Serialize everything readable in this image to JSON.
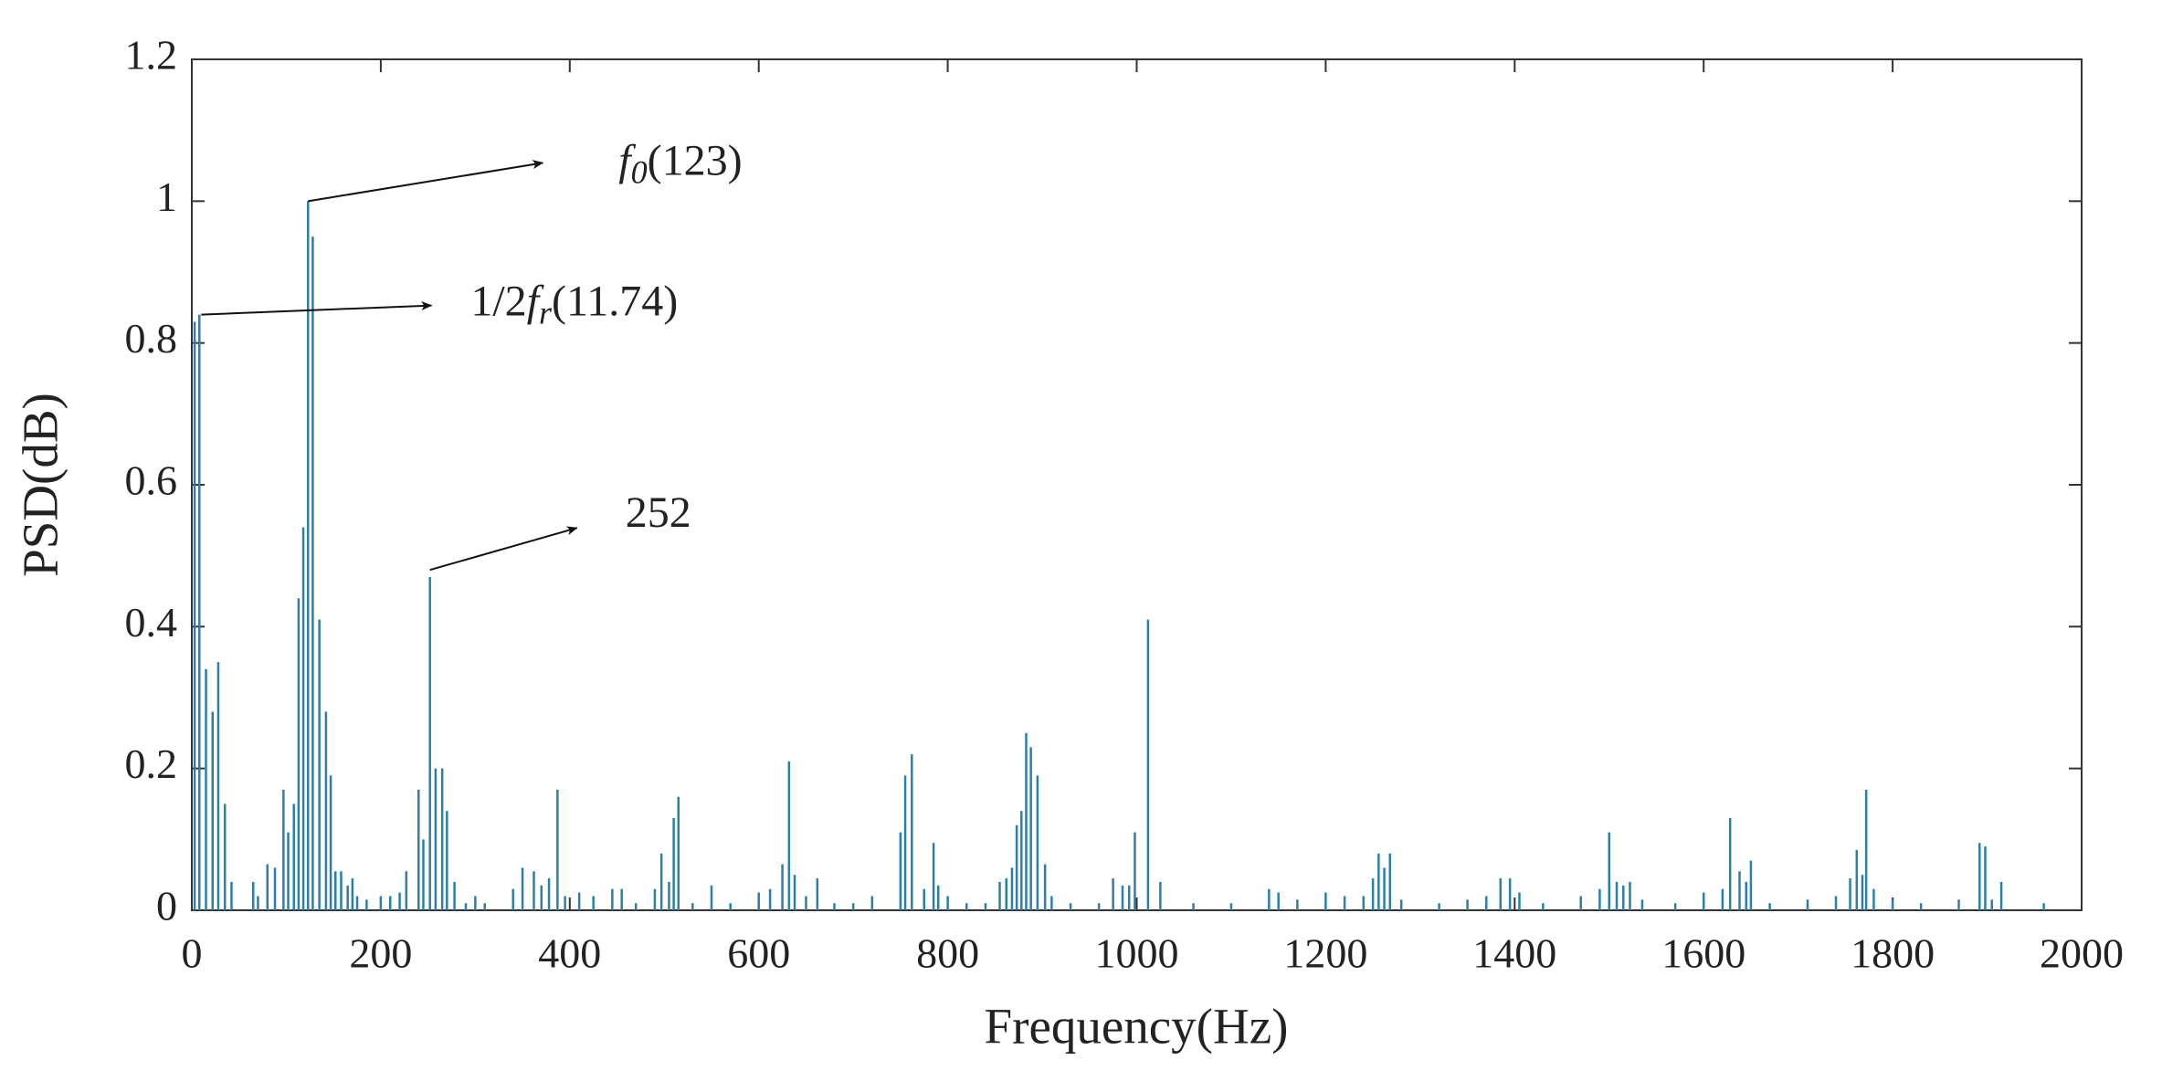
{
  "chart_data": {
    "type": "stem",
    "xlabel": "Frequency(Hz)",
    "ylabel": "PSD(dB)",
    "color": "#2e7fa8",
    "xlim": [
      0,
      2000
    ],
    "xticks": [
      0,
      200,
      400,
      600,
      800,
      1000,
      1200,
      1400,
      1600,
      1800,
      2000
    ],
    "ylim": [
      0,
      1.2
    ],
    "yticks": [
      0,
      0.2,
      0.4,
      0.6,
      0.8,
      1,
      1.2
    ],
    "x": [
      3,
      8,
      15,
      22,
      28,
      35,
      42,
      65,
      70,
      80,
      88,
      97,
      102,
      108,
      113,
      118,
      123,
      128,
      135,
      142,
      147,
      152,
      158,
      165,
      170,
      175,
      185,
      200,
      210,
      220,
      227,
      240,
      245,
      252,
      258,
      265,
      270,
      278,
      290,
      300,
      310,
      340,
      350,
      362,
      370,
      378,
      387,
      395,
      410,
      425,
      445,
      455,
      470,
      490,
      497,
      505,
      510,
      515,
      530,
      550,
      570,
      600,
      612,
      625,
      632,
      638,
      650,
      662,
      680,
      700,
      720,
      750,
      755,
      762,
      775,
      785,
      790,
      800,
      820,
      840,
      855,
      862,
      868,
      873,
      878,
      883,
      888,
      895,
      903,
      910,
      930,
      960,
      975,
      985,
      992,
      998,
      1012,
      1025,
      1060,
      1100,
      1140,
      1150,
      1170,
      1200,
      1220,
      1240,
      1250,
      1256,
      1262,
      1268,
      1280,
      1320,
      1350,
      1370,
      1385,
      1395,
      1405,
      1430,
      1470,
      1490,
      1500,
      1508,
      1515,
      1522,
      1535,
      1570,
      1600,
      1620,
      1628,
      1638,
      1645,
      1650,
      1670,
      1710,
      1740,
      1755,
      1762,
      1768,
      1772,
      1780,
      1800,
      1830,
      1870,
      1892,
      1898,
      1905,
      1915,
      1960
    ],
    "values": [
      0.83,
      0.84,
      0.34,
      0.28,
      0.35,
      0.15,
      0.04,
      0.04,
      0.02,
      0.065,
      0.06,
      0.17,
      0.11,
      0.15,
      0.44,
      0.54,
      1.0,
      0.95,
      0.41,
      0.28,
      0.19,
      0.055,
      0.055,
      0.035,
      0.045,
      0.02,
      0.015,
      0.02,
      0.02,
      0.025,
      0.055,
      0.17,
      0.1,
      0.47,
      0.2,
      0.2,
      0.14,
      0.04,
      0.01,
      0.02,
      0.01,
      0.03,
      0.06,
      0.055,
      0.035,
      0.045,
      0.17,
      0.02,
      0.025,
      0.02,
      0.03,
      0.03,
      0.01,
      0.03,
      0.08,
      0.04,
      0.13,
      0.16,
      0.01,
      0.035,
      0.01,
      0.025,
      0.03,
      0.065,
      0.21,
      0.05,
      0.02,
      0.045,
      0.01,
      0.01,
      0.02,
      0.11,
      0.19,
      0.22,
      0.03,
      0.095,
      0.035,
      0.02,
      0.01,
      0.01,
      0.04,
      0.045,
      0.06,
      0.12,
      0.14,
      0.25,
      0.23,
      0.19,
      0.065,
      0.02,
      0.01,
      0.01,
      0.045,
      0.035,
      0.035,
      0.11,
      0.41,
      0.04,
      0.01,
      0.01,
      0.03,
      0.025,
      0.015,
      0.025,
      0.02,
      0.02,
      0.045,
      0.08,
      0.06,
      0.08,
      0.015,
      0.01,
      0.015,
      0.02,
      0.045,
      0.045,
      0.025,
      0.01,
      0.02,
      0.03,
      0.11,
      0.04,
      0.035,
      0.04,
      0.015,
      0.01,
      0.025,
      0.03,
      0.13,
      0.055,
      0.04,
      0.07,
      0.01,
      0.015,
      0.02,
      0.045,
      0.085,
      0.05,
      0.17,
      0.03,
      0.015,
      0.01,
      0.015,
      0.095,
      0.09,
      0.015,
      0.04,
      0.01
    ],
    "annotations": [
      {
        "x": 123,
        "y": 1,
        "label": [
          "f",
          "0",
          "(123)"
        ]
      },
      {
        "x": 10,
        "y": 0.84,
        "label": [
          "1/2",
          "f",
          "r",
          "(11.74)"
        ]
      },
      {
        "x": 252,
        "y": 0.48,
        "label": [
          "252"
        ]
      }
    ]
  }
}
